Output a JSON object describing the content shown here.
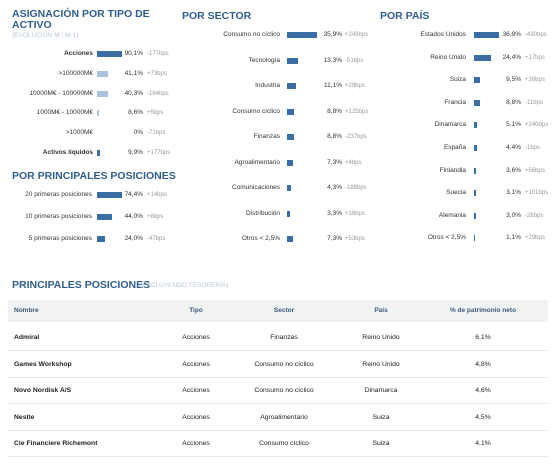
{
  "asignacion": {
    "title": "ASIGNACIÓN POR TIPO DE ACTIVO",
    "subtitle": "(EVOLUCIÓN M / M-1)",
    "rows": [
      {
        "label": "Acciones",
        "value": 90.1,
        "value_label": "90,1%",
        "change": "-177bps"
      },
      {
        "label": ">100000M€",
        "value": 41.1,
        "value_label": "41,1%",
        "change": "+73bps"
      },
      {
        "label": "10000M€ - 100000M€",
        "value": 40.3,
        "value_label": "40,3%",
        "change": "-184bps"
      },
      {
        "label": "1000M€ - 10000M€",
        "value": 8.6,
        "value_label": "8,6%",
        "change": "+5bps"
      },
      {
        "label": ">1000M€",
        "value": 0,
        "value_label": "0%",
        "change": "-71bps"
      },
      {
        "label": "Activos líquidos",
        "value": 9.9,
        "value_label": "9,9%",
        "change": "+177bps"
      }
    ]
  },
  "concentracion": {
    "title": "POR PRINCIPALES POSICIONES",
    "rows": [
      {
        "label": "20 primeras posiciones",
        "value": 74.4,
        "value_label": "74,4%",
        "change": "+14bps"
      },
      {
        "label": "10 primeras posiciones",
        "value": 44.0,
        "value_label": "44,0%",
        "change": "+8bps"
      },
      {
        "label": "5 primeras posiciones",
        "value": 24.0,
        "value_label": "24,0%",
        "change": "-47bps"
      }
    ]
  },
  "sector": {
    "title": "POR SECTOR",
    "rows": [
      {
        "label": "Consumo no cíclico",
        "value": 35.9,
        "value_label": "35,9%",
        "change": "+249bps"
      },
      {
        "label": "Tecnología",
        "value": 13.3,
        "value_label": "13,3%",
        "change": "-51bps"
      },
      {
        "label": "Industria",
        "value": 11.1,
        "value_label": "11,1%",
        "change": "+29bps"
      },
      {
        "label": "Consumo cíclico",
        "value": 8.8,
        "value_label": "8,8%",
        "change": "+125bps"
      },
      {
        "label": "Finanzas",
        "value": 8.8,
        "value_label": "8,8%",
        "change": "-237bps"
      },
      {
        "label": "Agroalimentario",
        "value": 7.3,
        "value_label": "7,3%",
        "change": "+4bps"
      },
      {
        "label": "Comunicaciones",
        "value": 4.3,
        "value_label": "4,3%",
        "change": "-188bps"
      },
      {
        "label": "Distribución",
        "value": 3.3,
        "value_label": "3,3%",
        "change": "+16bps"
      },
      {
        "label": "Otros < 2,5%",
        "value": 7.3,
        "value_label": "7,3%",
        "change": "+53bps"
      }
    ]
  },
  "pais": {
    "title": "POR PAÍS",
    "rows": [
      {
        "label": "Estados Unidos",
        "value": 36.9,
        "value_label": "36,9%",
        "change": "-430bps"
      },
      {
        "label": "Reino Unido",
        "value": 24.4,
        "value_label": "24,4%",
        "change": "+17bps"
      },
      {
        "label": "Suiza",
        "value": 9.5,
        "value_label": "9,5%",
        "change": "+26bps"
      },
      {
        "label": "Francia",
        "value": 8.8,
        "value_label": "8,8%",
        "change": "-11bps"
      },
      {
        "label": "Dinamarca",
        "value": 5.1,
        "value_label": "5,1%",
        "change": "+240bps"
      },
      {
        "label": "España",
        "value": 4.4,
        "value_label": "4,4%",
        "change": "-1bps"
      },
      {
        "label": "Finlandia",
        "value": 3.6,
        "value_label": "3,6%",
        "change": "+56bps"
      },
      {
        "label": "Suecia",
        "value": 3.1,
        "value_label": "3,1%",
        "change": "+101bps"
      },
      {
        "label": "Alemania",
        "value": 3.0,
        "value_label": "3,0%",
        "change": "-26bps"
      },
      {
        "label": "Otros < 2,5%",
        "value": 1.1,
        "value_label": "1,1%",
        "change": "+29bps"
      }
    ]
  },
  "posiciones": {
    "title": "PRINCIPALES POSICIONES",
    "subtitle": "(EXCLUYENDO TESORERÍA)",
    "headers": [
      "Nombre",
      "Tipo",
      "Sector",
      "País",
      "% de patrimonio neto"
    ],
    "rows": [
      [
        "Admiral",
        "Acciones",
        "Finanzas",
        "Reino Unido",
        "6,1%"
      ],
      [
        "Games Workshop",
        "Acciones",
        "Consumo no cíclico",
        "Reino Unido",
        "4,8%"
      ],
      [
        "Novo Nordisk A/S",
        "Acciones",
        "Consumo no cíclico",
        "Dinamarca",
        "4,6%"
      ],
      [
        "Nestle",
        "Acciones",
        "Agroalimentario",
        "Suiza",
        "4,5%"
      ],
      [
        "Cie Financiere Richemont",
        "Acciones",
        "Consumo cíclico",
        "Suiza",
        "4,1%"
      ]
    ]
  }
}
